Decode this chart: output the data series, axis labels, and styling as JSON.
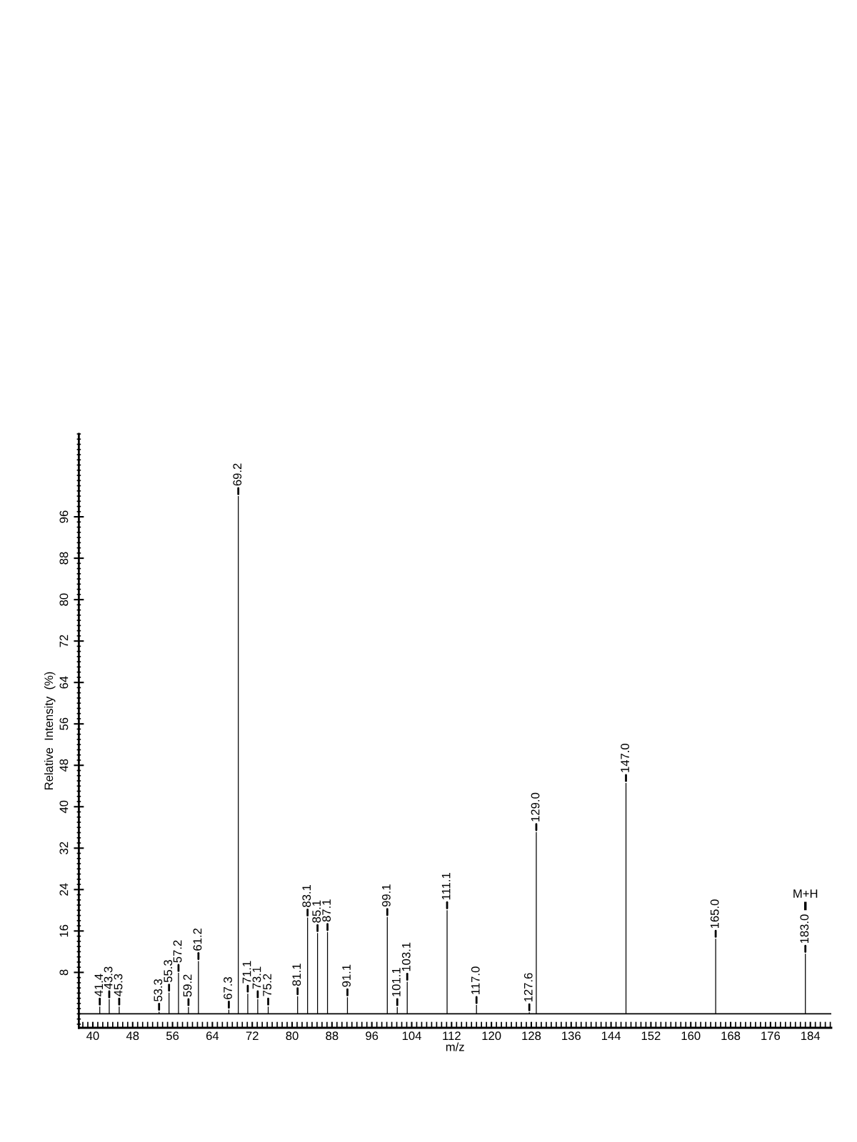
{
  "chart_data": {
    "type": "bar",
    "xlabel": "m/z",
    "ylabel": "Relative  Intensity  (%)",
    "x": [
      41.4,
      43.3,
      45.3,
      53.3,
      55.3,
      57.2,
      59.2,
      61.2,
      67.3,
      69.2,
      71.1,
      73.1,
      75.2,
      81.1,
      83.1,
      85.1,
      87.1,
      91.1,
      99.1,
      101.1,
      103.1,
      111.1,
      117.0,
      127.6,
      129.0,
      147.0,
      165.0,
      183.0
    ],
    "values": [
      1.4,
      2.8,
      1.4,
      0.4,
      4.1,
      7.9,
      1.3,
      10.2,
      0.8,
      100,
      3.9,
      2.8,
      1.4,
      3.4,
      18.6,
      15.6,
      15.8,
      3.2,
      18.7,
      1.3,
      6.2,
      20.0,
      1.7,
      0.3,
      35.1,
      44.6,
      14.5,
      11.6
    ],
    "color": "#000000",
    "xlim": [
      37.2,
      188.2
    ],
    "ylim": [
      -2.7,
      112
    ],
    "xticks": [
      40,
      48,
      56,
      64,
      72,
      80,
      88,
      96,
      104,
      112,
      120,
      128,
      136,
      144,
      152,
      160,
      168,
      176,
      184
    ],
    "yticks": [
      8,
      16,
      24,
      32,
      40,
      48,
      56,
      64,
      72,
      80,
      88,
      96
    ],
    "grid": false,
    "ref_lines": [
      {
        "axis": "y",
        "value": 0,
        "color": "#000000"
      }
    ],
    "annotations": [
      {
        "text": "41.4",
        "x": 41.4,
        "y": 1.4
      },
      {
        "text": "43.3",
        "x": 43.3,
        "y": 2.8
      },
      {
        "text": "45.3",
        "x": 45.3,
        "y": 1.4
      },
      {
        "text": "53.3",
        "x": 53.3,
        "y": 0.4
      },
      {
        "text": "55.3",
        "x": 55.3,
        "y": 4.1
      },
      {
        "text": "57.2",
        "x": 57.2,
        "y": 7.9
      },
      {
        "text": "59.2",
        "x": 59.2,
        "y": 1.3
      },
      {
        "text": "61.2",
        "x": 61.2,
        "y": 10.2
      },
      {
        "text": "67.3",
        "x": 67.3,
        "y": 0.8
      },
      {
        "text": "69.2",
        "x": 69.2,
        "y": 100
      },
      {
        "text": "71.1",
        "x": 71.1,
        "y": 3.9
      },
      {
        "text": "73.1",
        "x": 73.1,
        "y": 2.8
      },
      {
        "text": "75.2",
        "x": 75.2,
        "y": 1.4
      },
      {
        "text": "81.1",
        "x": 81.1,
        "y": 3.4
      },
      {
        "text": "83.1",
        "x": 83.1,
        "y": 18.6
      },
      {
        "text": "85.1",
        "x": 85.1,
        "y": 15.6
      },
      {
        "text": "87.1",
        "x": 87.1,
        "y": 15.8
      },
      {
        "text": "91.1",
        "x": 91.1,
        "y": 3.2
      },
      {
        "text": "99.1",
        "x": 99.1,
        "y": 18.7
      },
      {
        "text": "101.1",
        "x": 101.1,
        "y": 1.3
      },
      {
        "text": "103.1",
        "x": 103.1,
        "y": 6.2
      },
      {
        "text": "111.1",
        "x": 111.1,
        "y": 20.0
      },
      {
        "text": "117.0",
        "x": 117.0,
        "y": 1.7
      },
      {
        "text": "127.6",
        "x": 127.6,
        "y": 0.3
      },
      {
        "text": "129.0",
        "x": 129.0,
        "y": 35.1
      },
      {
        "text": "147.0",
        "x": 147.0,
        "y": 44.6
      },
      {
        "text": "165.0",
        "x": 165.0,
        "y": 14.5
      },
      {
        "text": "183.0",
        "x": 183.0,
        "y": 11.6
      },
      "M+H"
    ]
  }
}
